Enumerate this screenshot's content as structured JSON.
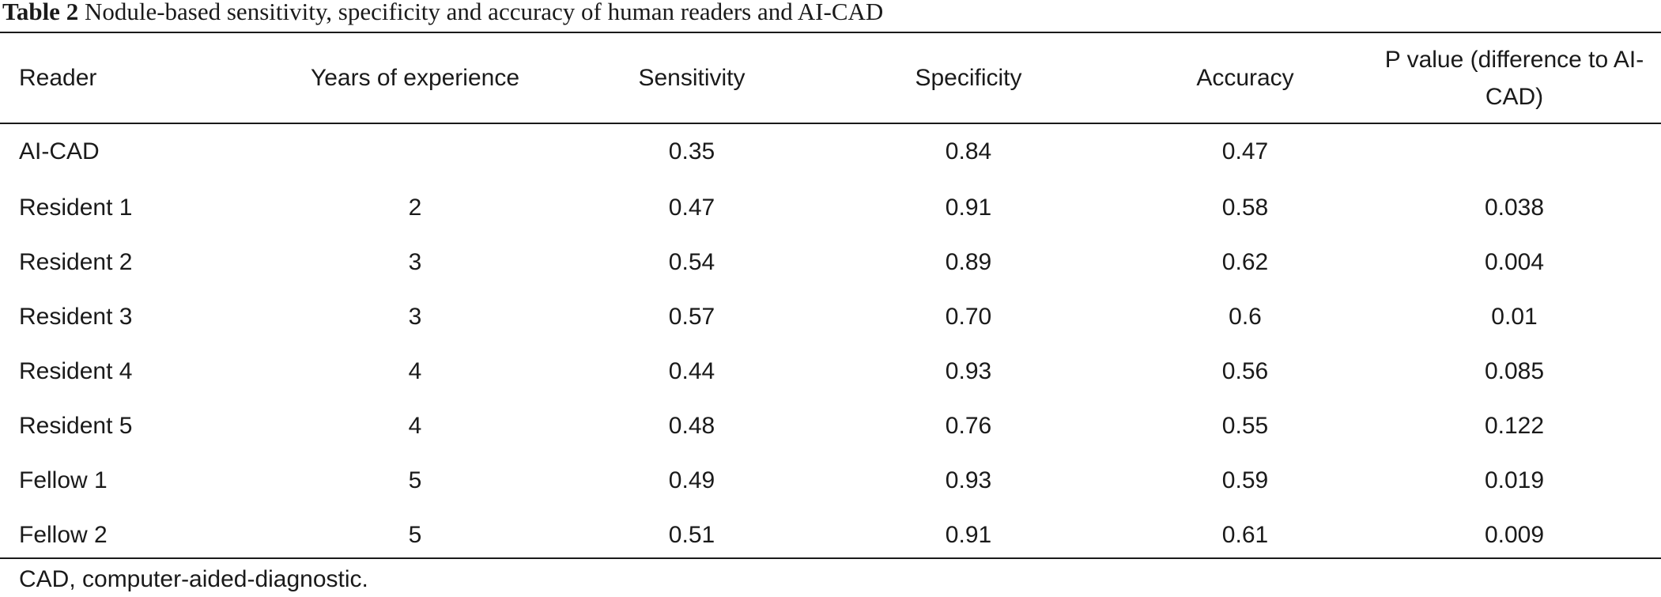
{
  "caption": {
    "label": "Table 2",
    "text": "Nodule-based sensitivity, specificity and accuracy of human readers and AI-CAD"
  },
  "table": {
    "headers": [
      "Reader",
      "Years of experience",
      "Sensitivity",
      "Specificity",
      "Accuracy",
      "P value (difference to AI-CAD)"
    ],
    "rows": [
      [
        "AI-CAD",
        "",
        "0.35",
        "0.84",
        "0.47",
        ""
      ],
      [
        "Resident 1",
        "2",
        "0.47",
        "0.91",
        "0.58",
        "0.038"
      ],
      [
        "Resident 2",
        "3",
        "0.54",
        "0.89",
        "0.62",
        "0.004"
      ],
      [
        "Resident 3",
        "3",
        "0.57",
        "0.70",
        "0.6",
        "0.01"
      ],
      [
        "Resident 4",
        "4",
        "0.44",
        "0.93",
        "0.56",
        "0.085"
      ],
      [
        "Resident 5",
        "4",
        "0.48",
        "0.76",
        "0.55",
        "0.122"
      ],
      [
        "Fellow 1",
        "5",
        "0.49",
        "0.93",
        "0.59",
        "0.019"
      ],
      [
        "Fellow 2",
        "5",
        "0.51",
        "0.91",
        "0.61",
        "0.009"
      ]
    ]
  },
  "footnote": "CAD, computer-aided-diagnostic."
}
